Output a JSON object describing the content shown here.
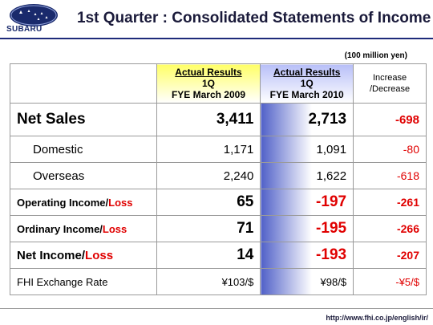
{
  "header": {
    "logo_text": "SUBARU",
    "title": "1st Quarter : Consolidated Statements of Income"
  },
  "unit_note": "(100 million yen)",
  "columns": {
    "col1_line1": "Actual Results",
    "col1_line2": "1Q",
    "col1_line3": "FYE March 2009",
    "col2_line1": "Actual Results",
    "col2_line2": "1Q",
    "col2_line3": "FYE March 2010",
    "col3_line1": "Increase",
    "col3_line2": "/Decrease"
  },
  "rows": [
    {
      "label": "Net Sales",
      "v2009": "3,411",
      "v2010": "2,713",
      "change": "-698"
    },
    {
      "label": "Domestic",
      "v2009": "1,171",
      "v2010": "1,091",
      "change": "-80"
    },
    {
      "label": "Overseas",
      "v2009": "2,240",
      "v2010": "1,622",
      "change": "-618"
    },
    {
      "label_a": "Operating Income/",
      "label_b": "Loss",
      "v2009": "65",
      "v2010": "-197",
      "change": "-261"
    },
    {
      "label_a": "Ordinary Income/",
      "label_b": "Loss",
      "v2009": "71",
      "v2010": "-195",
      "change": "-266"
    },
    {
      "label_a": "Net Income/",
      "label_b": "Loss",
      "v2009": "14",
      "v2010": "-193",
      "change": "-207"
    },
    {
      "label": "FHI Exchange Rate",
      "v2009": "¥103/$",
      "v2010": "¥98/$",
      "change": "-¥5/$"
    }
  ],
  "colors": {
    "header_rule": "#1e2b7a",
    "negative": "#e00000",
    "highlight_2009": "#ffff66",
    "highlight_2010": "#5060c8"
  },
  "footer": {
    "url": "http://www.fhi.co.jp/english/ir/"
  }
}
